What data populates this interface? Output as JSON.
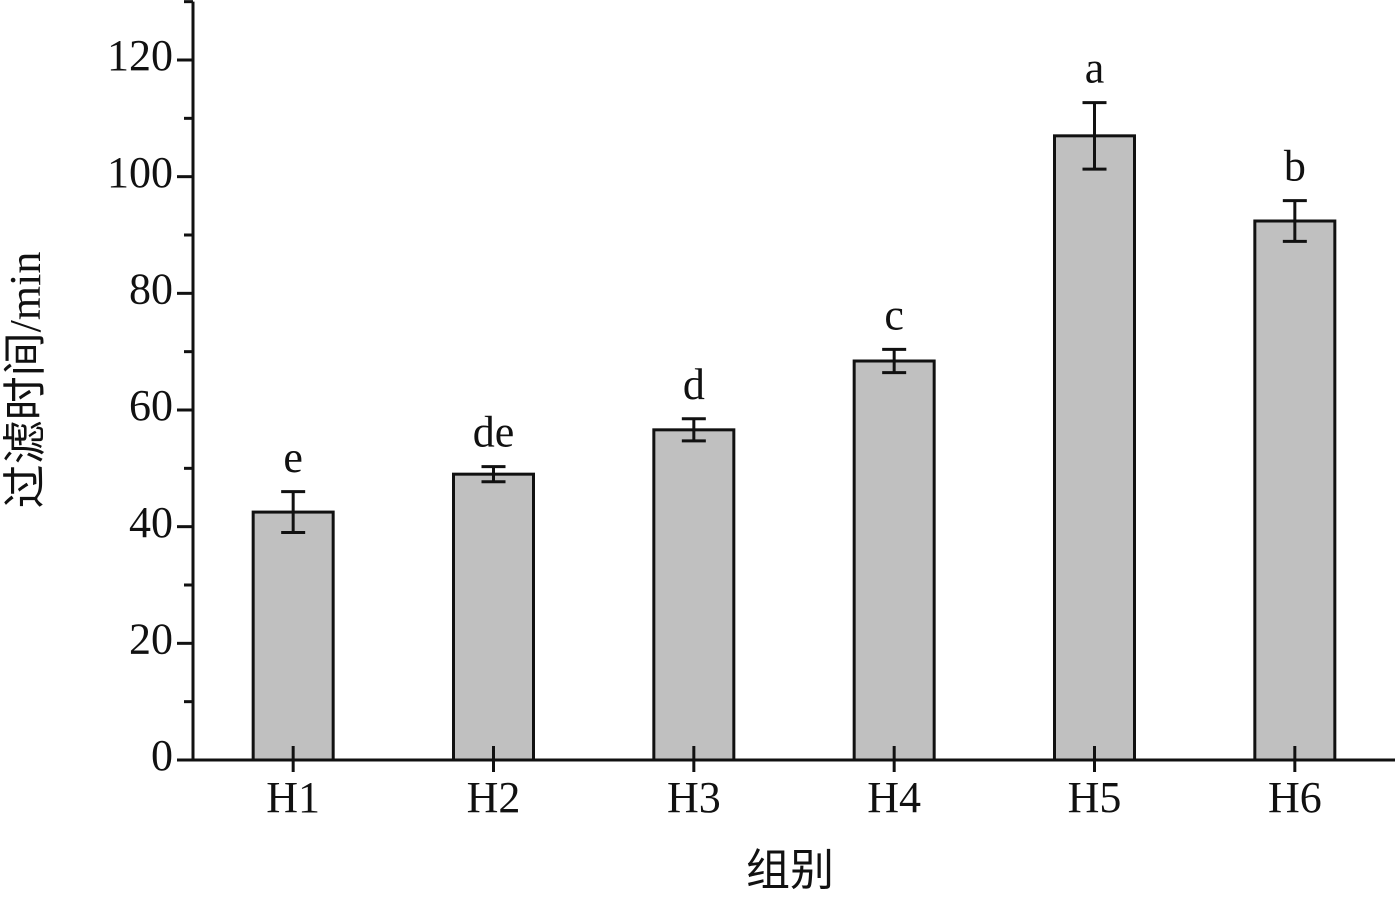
{
  "chart_data": {
    "type": "bar",
    "x_label": "组别",
    "y_label": "过滤时间/min",
    "categories": [
      "H1",
      "H2",
      "H3",
      "H4",
      "H5",
      "H6"
    ],
    "values": [
      42.5,
      49.0,
      56.6,
      68.4,
      107.0,
      92.4
    ],
    "errors": [
      3.5,
      1.3,
      1.9,
      2.0,
      5.7,
      3.5
    ],
    "annotations": [
      "e",
      "de",
      "d",
      "c",
      "a",
      "b"
    ],
    "color": "#c0c0c0",
    "ylim": [
      0,
      130
    ],
    "yticks": [
      0,
      20,
      40,
      60,
      80,
      100,
      120
    ]
  }
}
